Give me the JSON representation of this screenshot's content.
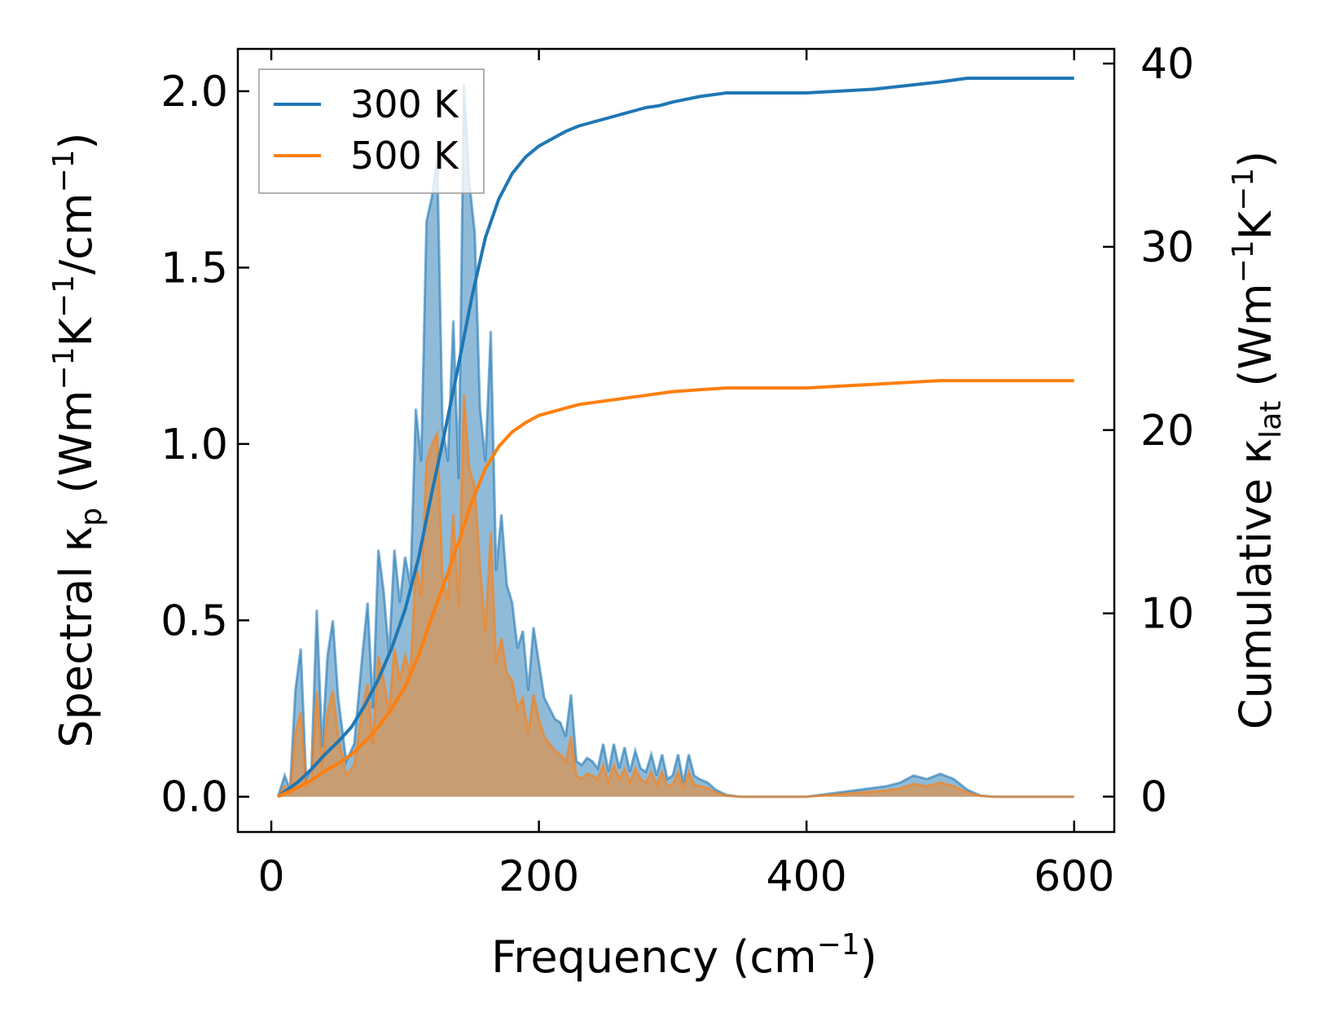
{
  "chart_data": {
    "type": "line",
    "xlabel": "Frequency (cm",
    "xlabel_sup": "−1",
    "xlabel_tail": ")",
    "xlim": [
      -25,
      630
    ],
    "ylabel_left": {
      "pre": "Spectral κ",
      "sub1": "p",
      "mid1": " (Wm",
      "sup1": "−1",
      "mid2": "K",
      "sup2": "−1",
      "mid3": "/cm",
      "sup3": "−1",
      "tail": ")"
    },
    "ylabel_right": {
      "pre": "Cumulative κ",
      "sub1": "lat",
      "mid1": " (Wm",
      "sup1": "−1",
      "mid2": "K",
      "sup2": "−1",
      "tail": ")"
    },
    "ylim_left": [
      -0.1,
      2.12
    ],
    "ylim_right": [
      -1.93,
      40.8
    ],
    "xticks": [
      0,
      200,
      400,
      600
    ],
    "xtick_labels": [
      "0",
      "200",
      "400",
      "600"
    ],
    "yticks_left": [
      0.0,
      0.5,
      1.0,
      1.5,
      2.0
    ],
    "ytick_labels_left": [
      "0.0",
      "0.5",
      "1.0",
      "1.5",
      "2.0"
    ],
    "yticks_right": [
      0,
      10,
      20,
      30,
      40
    ],
    "ytick_labels_right": [
      "0",
      "10",
      "20",
      "30",
      "40"
    ],
    "legend": {
      "position": "top-left",
      "entries": [
        "300 K",
        "500 K"
      ]
    },
    "colors": {
      "300K": "#1f77b4",
      "500K": "#ff7f0e"
    },
    "x": [
      5,
      10,
      14,
      18,
      22,
      26,
      30,
      34,
      38,
      42,
      46,
      50,
      56,
      62,
      68,
      72,
      76,
      80,
      84,
      88,
      92,
      96,
      100,
      104,
      108,
      112,
      116,
      120,
      124,
      128,
      132,
      136,
      140,
      144,
      148,
      152,
      156,
      160,
      164,
      168,
      172,
      176,
      180,
      184,
      188,
      192,
      196,
      200,
      204,
      208,
      212,
      216,
      220,
      224,
      228,
      232,
      236,
      240,
      244,
      248,
      252,
      256,
      260,
      264,
      268,
      272,
      276,
      280,
      284,
      288,
      292,
      296,
      300,
      304,
      308,
      312,
      316,
      320,
      326,
      332,
      340,
      350,
      360,
      380,
      400,
      420,
      440,
      460,
      470,
      480,
      490,
      500,
      510,
      520,
      530,
      540,
      560,
      600
    ],
    "series": [
      {
        "name": "300 K",
        "axis": "left",
        "type": "spectral",
        "values": [
          0.0,
          0.06,
          0.02,
          0.3,
          0.42,
          0.05,
          0.08,
          0.53,
          0.14,
          0.4,
          0.5,
          0.28,
          0.1,
          0.15,
          0.4,
          0.55,
          0.25,
          0.7,
          0.58,
          0.4,
          0.7,
          0.55,
          0.68,
          0.6,
          1.1,
          0.95,
          1.63,
          1.7,
          1.81,
          1.05,
          0.95,
          1.35,
          0.9,
          2.02,
          1.74,
          1.6,
          1.1,
          0.95,
          1.32,
          0.64,
          0.8,
          0.6,
          0.55,
          0.42,
          0.47,
          0.3,
          0.48,
          0.38,
          0.28,
          0.25,
          0.22,
          0.21,
          0.17,
          0.29,
          0.1,
          0.09,
          0.11,
          0.1,
          0.08,
          0.15,
          0.07,
          0.15,
          0.08,
          0.14,
          0.07,
          0.13,
          0.08,
          0.07,
          0.12,
          0.06,
          0.12,
          0.05,
          0.06,
          0.12,
          0.04,
          0.12,
          0.06,
          0.05,
          0.04,
          0.02,
          0.005,
          0.0,
          0.0,
          0.0,
          0.0,
          0.01,
          0.02,
          0.03,
          0.04,
          0.06,
          0.05,
          0.065,
          0.05,
          0.02,
          0.003,
          0.0,
          0.0,
          0.0
        ]
      },
      {
        "name": "500 K",
        "axis": "left",
        "type": "spectral",
        "values": [
          0.0,
          0.03,
          0.01,
          0.18,
          0.24,
          0.03,
          0.05,
          0.3,
          0.08,
          0.24,
          0.3,
          0.17,
          0.06,
          0.09,
          0.25,
          0.32,
          0.15,
          0.4,
          0.33,
          0.24,
          0.42,
          0.33,
          0.4,
          0.35,
          0.66,
          0.57,
          0.95,
          1.0,
          1.03,
          0.62,
          0.56,
          0.8,
          0.54,
          1.14,
          0.93,
          0.88,
          0.65,
          0.47,
          0.75,
          0.38,
          0.45,
          0.35,
          0.33,
          0.25,
          0.28,
          0.18,
          0.29,
          0.22,
          0.17,
          0.15,
          0.13,
          0.12,
          0.1,
          0.17,
          0.06,
          0.05,
          0.065,
          0.06,
          0.05,
          0.09,
          0.04,
          0.09,
          0.05,
          0.08,
          0.04,
          0.08,
          0.05,
          0.04,
          0.07,
          0.035,
          0.07,
          0.03,
          0.035,
          0.07,
          0.025,
          0.07,
          0.035,
          0.03,
          0.025,
          0.012,
          0.003,
          0.0,
          0.0,
          0.0,
          0.0,
          0.006,
          0.012,
          0.018,
          0.024,
          0.036,
          0.03,
          0.04,
          0.03,
          0.012,
          0.002,
          0.0,
          0.0,
          0.0
        ]
      },
      {
        "name": "300 K",
        "axis": "right",
        "type": "cumulative",
        "x": [
          5,
          20,
          30,
          40,
          50,
          60,
          70,
          80,
          90,
          100,
          110,
          120,
          130,
          140,
          150,
          160,
          170,
          180,
          190,
          200,
          210,
          220,
          230,
          240,
          250,
          260,
          270,
          280,
          290,
          300,
          320,
          340,
          400,
          450,
          500,
          520,
          600
        ],
        "values": [
          0,
          0.8,
          1.5,
          2.3,
          3.0,
          3.8,
          5.0,
          6.4,
          8.1,
          10.2,
          13.0,
          16.6,
          20.0,
          23.6,
          27.3,
          30.5,
          32.6,
          34.0,
          34.9,
          35.5,
          35.9,
          36.3,
          36.6,
          36.8,
          37.0,
          37.2,
          37.4,
          37.6,
          37.7,
          37.9,
          38.2,
          38.4,
          38.4,
          38.6,
          39.0,
          39.2,
          39.2
        ]
      },
      {
        "name": "500 K",
        "axis": "right",
        "type": "cumulative",
        "x": [
          5,
          20,
          30,
          40,
          50,
          60,
          70,
          80,
          90,
          100,
          110,
          120,
          130,
          140,
          150,
          160,
          170,
          180,
          190,
          200,
          210,
          220,
          230,
          240,
          250,
          260,
          270,
          280,
          290,
          300,
          320,
          340,
          400,
          450,
          500,
          520,
          600
        ],
        "values": [
          0,
          0.5,
          0.9,
          1.4,
          1.8,
          2.3,
          3.0,
          3.8,
          4.8,
          6.0,
          7.7,
          9.8,
          11.8,
          13.9,
          16.1,
          17.9,
          19.1,
          19.9,
          20.4,
          20.8,
          21.0,
          21.2,
          21.4,
          21.5,
          21.6,
          21.7,
          21.8,
          21.9,
          22.0,
          22.1,
          22.2,
          22.3,
          22.3,
          22.5,
          22.7,
          22.7,
          22.7
        ]
      }
    ]
  }
}
